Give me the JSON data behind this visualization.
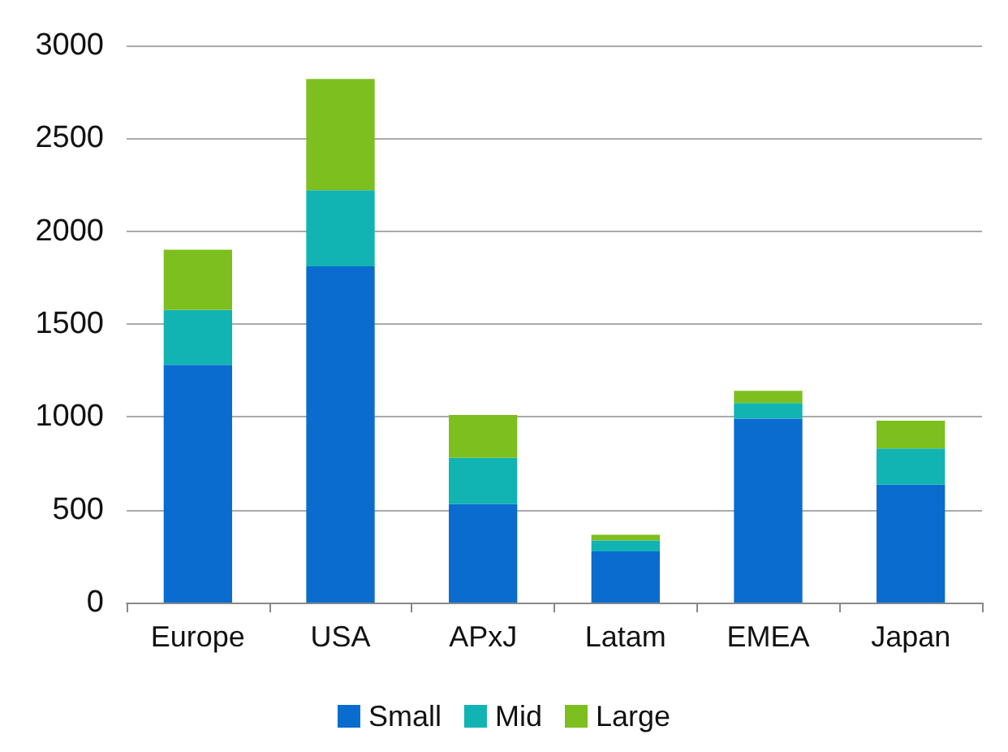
{
  "chart_data": {
    "type": "bar",
    "stacked": true,
    "categories": [
      "Europe",
      "USA",
      "APxJ",
      "Latam",
      "EMEA",
      "Japan"
    ],
    "series": [
      {
        "name": "Small",
        "color": "#0a6ccf",
        "values": [
          1280,
          1810,
          530,
          275,
          990,
          635
        ]
      },
      {
        "name": "Mid",
        "color": "#12b3b3",
        "values": [
          295,
          410,
          250,
          60,
          85,
          195
        ]
      },
      {
        "name": "Large",
        "color": "#7cbf1e",
        "values": [
          325,
          600,
          230,
          30,
          65,
          150
        ]
      }
    ],
    "ylim": [
      0,
      3000
    ],
    "yticks": [
      0,
      500,
      1000,
      1500,
      2000,
      2500,
      3000
    ],
    "grid": "y",
    "legend": "bottom"
  }
}
